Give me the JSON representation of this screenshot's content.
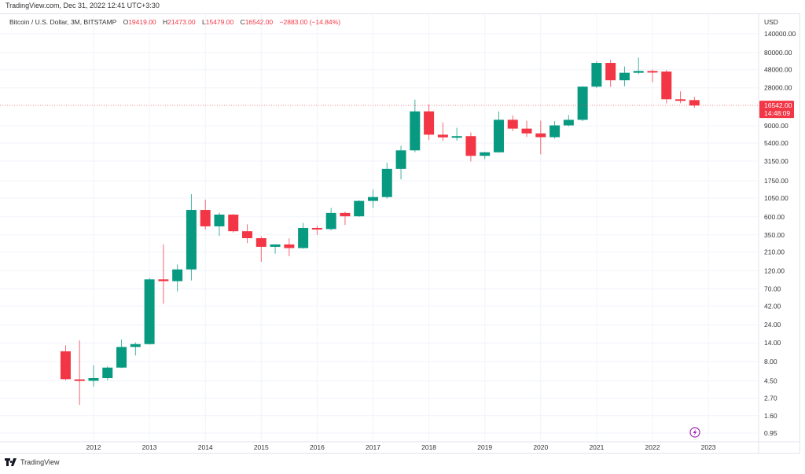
{
  "header": {
    "site_line": "TradingView.com, Dec 31, 2022 12:41 UTC+3:30"
  },
  "legend": {
    "symbol": "Bitcoin / U.S. Dollar, 3M, BITSTAMP",
    "o_label": "O",
    "o": "19419.00",
    "h_label": "H",
    "h": "21473.00",
    "l_label": "L",
    "l": "15479.00",
    "c_label": "C",
    "c": "16542.00",
    "change": "−2883.00 (−14.84%)"
  },
  "footer": {
    "logo_text": "TradingView"
  },
  "colors": {
    "up": "#089981",
    "down": "#f23645",
    "grid": "#f0f3fa",
    "last_price": "#f23645",
    "lightning": "#9c27b0"
  },
  "chart_data": {
    "type": "candlestick",
    "interval": "3M",
    "yscale": "log",
    "currency": "USD",
    "grid": true,
    "ylim": [
      0.95,
      140000
    ],
    "y_ticks": [
      "140000.00",
      "80000.00",
      "48000.00",
      "28000.00",
      "9000.00",
      "5400.00",
      "3150.00",
      "1750.00",
      "1050.00",
      "600.00",
      "350.00",
      "210.00",
      "120.00",
      "70.00",
      "42.00",
      "24.00",
      "14.00",
      "8.00",
      "4.50",
      "2.70",
      "1.60",
      "0.95"
    ],
    "x_ticks": [
      "2012",
      "2013",
      "2014",
      "2015",
      "2016",
      "2017",
      "2018",
      "2019",
      "2020",
      "2021",
      "2022",
      "2023"
    ],
    "last_price": {
      "value": "16542.00",
      "countdown": "14:48:09"
    },
    "candles": [
      {
        "q": "2011-Q3",
        "o": 10.9,
        "h": 13.0,
        "l": 4.6,
        "c": 4.75
      },
      {
        "q": "2011-Q4",
        "o": 4.72,
        "h": 15.1,
        "l": 2.2,
        "c": 4.53
      },
      {
        "q": "2012-Q1",
        "o": 4.53,
        "h": 7.2,
        "l": 3.8,
        "c": 4.9
      },
      {
        "q": "2012-Q2",
        "o": 4.9,
        "h": 7.0,
        "l": 4.6,
        "c": 6.7
      },
      {
        "q": "2012-Q3",
        "o": 6.7,
        "h": 15.5,
        "l": 6.6,
        "c": 12.4
      },
      {
        "q": "2012-Q4",
        "o": 12.4,
        "h": 14.2,
        "l": 9.6,
        "c": 13.5
      },
      {
        "q": "2013-Q1",
        "o": 13.5,
        "h": 96,
        "l": 13.3,
        "c": 93
      },
      {
        "q": "2013-Q2",
        "o": 93,
        "h": 263,
        "l": 45,
        "c": 88
      },
      {
        "q": "2013-Q3",
        "o": 88,
        "h": 145,
        "l": 65,
        "c": 125
      },
      {
        "q": "2013-Q4",
        "o": 125,
        "h": 1177,
        "l": 90,
        "c": 736
      },
      {
        "q": "2014-Q1",
        "o": 736,
        "h": 1000,
        "l": 410,
        "c": 451
      },
      {
        "q": "2014-Q2",
        "o": 451,
        "h": 680,
        "l": 340,
        "c": 640
      },
      {
        "q": "2014-Q3",
        "o": 640,
        "h": 650,
        "l": 375,
        "c": 390
      },
      {
        "q": "2014-Q4",
        "o": 390,
        "h": 480,
        "l": 275,
        "c": 317
      },
      {
        "q": "2015-Q1",
        "o": 317,
        "h": 335,
        "l": 157,
        "c": 245
      },
      {
        "q": "2015-Q2",
        "o": 245,
        "h": 265,
        "l": 200,
        "c": 263
      },
      {
        "q": "2015-Q3",
        "o": 263,
        "h": 315,
        "l": 185,
        "c": 236
      },
      {
        "q": "2015-Q4",
        "o": 236,
        "h": 500,
        "l": 232,
        "c": 430
      },
      {
        "q": "2016-Q1",
        "o": 430,
        "h": 460,
        "l": 350,
        "c": 416
      },
      {
        "q": "2016-Q2",
        "o": 416,
        "h": 780,
        "l": 400,
        "c": 673
      },
      {
        "q": "2016-Q3",
        "o": 673,
        "h": 700,
        "l": 470,
        "c": 609
      },
      {
        "q": "2016-Q4",
        "o": 609,
        "h": 980,
        "l": 600,
        "c": 963
      },
      {
        "q": "2017-Q1",
        "o": 963,
        "h": 1350,
        "l": 780,
        "c": 1080
      },
      {
        "q": "2017-Q2",
        "o": 1080,
        "h": 3000,
        "l": 1030,
        "c": 2500
      },
      {
        "q": "2017-Q3",
        "o": 2500,
        "h": 4980,
        "l": 1830,
        "c": 4340
      },
      {
        "q": "2017-Q4",
        "o": 4340,
        "h": 19666,
        "l": 4100,
        "c": 13880
      },
      {
        "q": "2018-Q1",
        "o": 13880,
        "h": 17200,
        "l": 5900,
        "c": 6926
      },
      {
        "q": "2018-Q2",
        "o": 6926,
        "h": 9990,
        "l": 5750,
        "c": 6400
      },
      {
        "q": "2018-Q3",
        "o": 6400,
        "h": 8500,
        "l": 5800,
        "c": 6630
      },
      {
        "q": "2018-Q4",
        "o": 6630,
        "h": 7400,
        "l": 3120,
        "c": 3690
      },
      {
        "q": "2019-Q1",
        "o": 3690,
        "h": 4150,
        "l": 3350,
        "c": 4100
      },
      {
        "q": "2019-Q2",
        "o": 4100,
        "h": 13880,
        "l": 4050,
        "c": 10800
      },
      {
        "q": "2019-Q3",
        "o": 10800,
        "h": 12300,
        "l": 7700,
        "c": 8300
      },
      {
        "q": "2019-Q4",
        "o": 8300,
        "h": 10500,
        "l": 6450,
        "c": 7200
      },
      {
        "q": "2020-Q1",
        "o": 7200,
        "h": 10500,
        "l": 3850,
        "c": 6430
      },
      {
        "q": "2020-Q2",
        "o": 6430,
        "h": 10400,
        "l": 6150,
        "c": 9140
      },
      {
        "q": "2020-Q3",
        "o": 9140,
        "h": 12480,
        "l": 8900,
        "c": 10790
      },
      {
        "q": "2020-Q4",
        "o": 10790,
        "h": 29300,
        "l": 10380,
        "c": 28990
      },
      {
        "q": "2021-Q1",
        "o": 28990,
        "h": 61780,
        "l": 27730,
        "c": 58800
      },
      {
        "q": "2021-Q2",
        "o": 58800,
        "h": 64900,
        "l": 28800,
        "c": 35040
      },
      {
        "q": "2021-Q3",
        "o": 35040,
        "h": 52900,
        "l": 29300,
        "c": 43800
      },
      {
        "q": "2021-Q4",
        "o": 43800,
        "h": 69000,
        "l": 42000,
        "c": 46200
      },
      {
        "q": "2022-Q1",
        "o": 46200,
        "h": 48200,
        "l": 33000,
        "c": 45500
      },
      {
        "q": "2022-Q2",
        "o": 45500,
        "h": 47500,
        "l": 17600,
        "c": 19900
      },
      {
        "q": "2022-Q3",
        "o": 19900,
        "h": 25200,
        "l": 17700,
        "c": 19420
      },
      {
        "q": "2022-Q4",
        "o": 19419,
        "h": 21473,
        "l": 15479,
        "c": 16542
      }
    ]
  }
}
